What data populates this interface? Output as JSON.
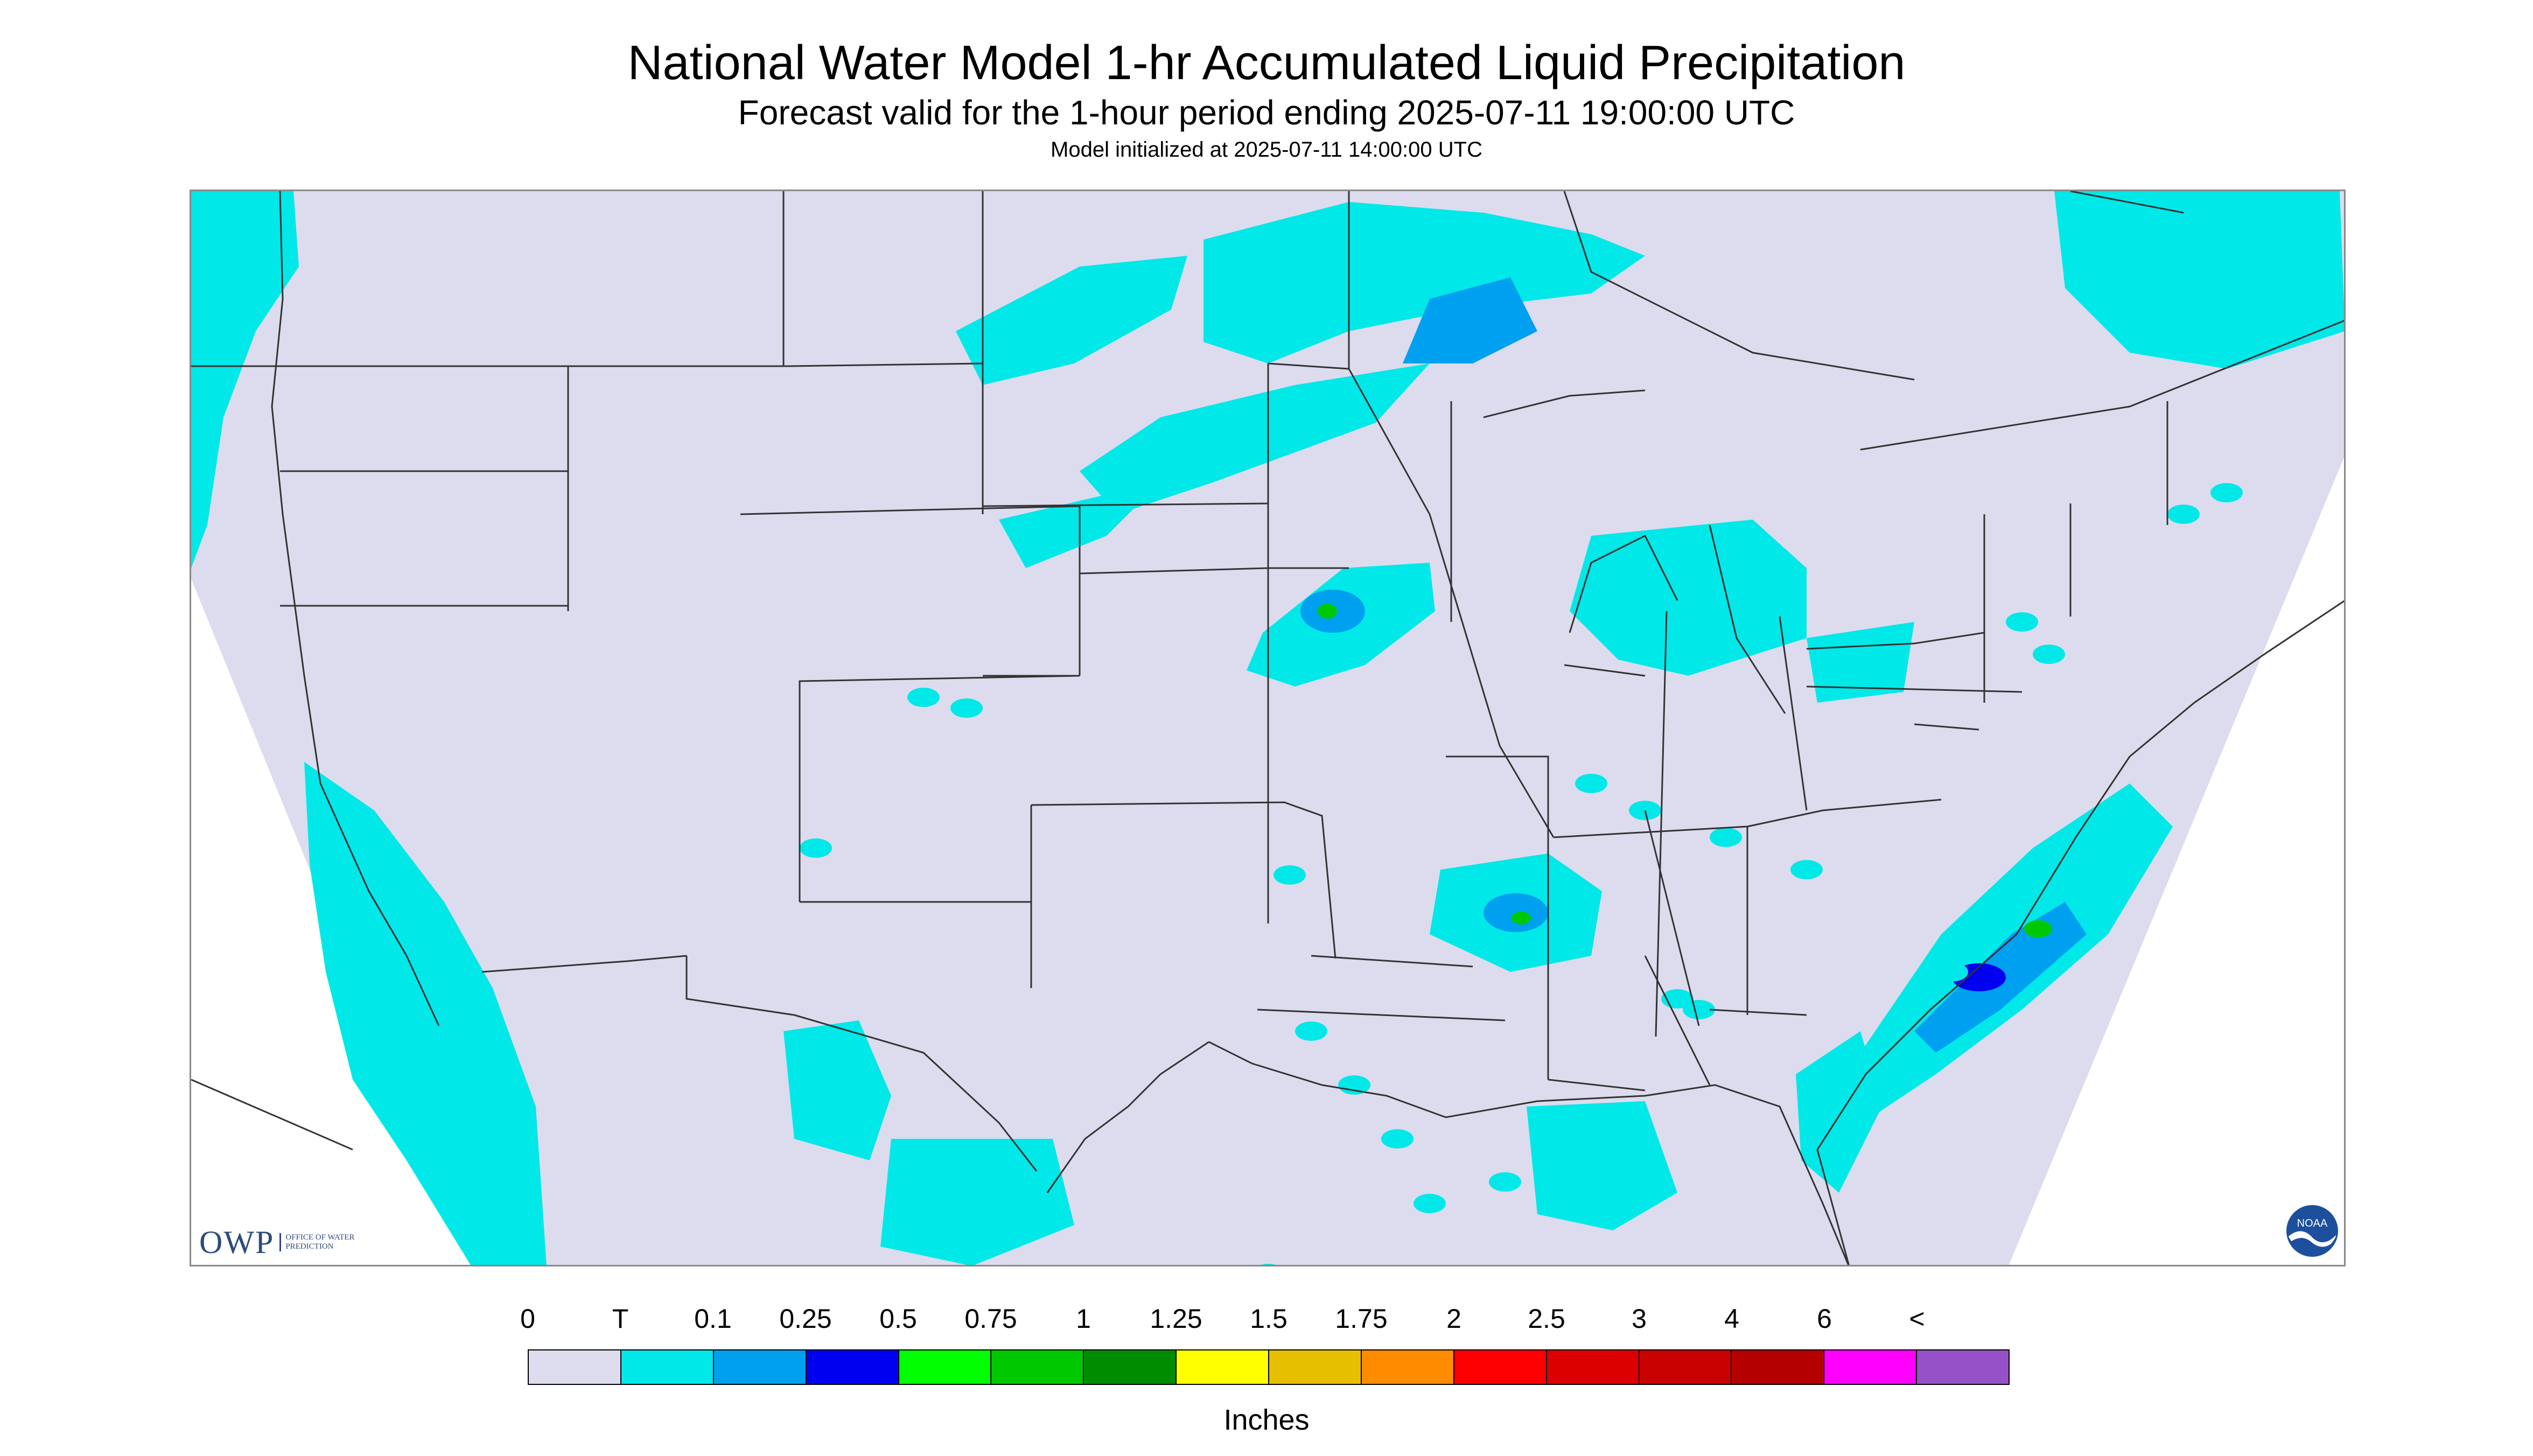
{
  "title": "National Water Model 1-hr Accumulated Liquid Precipitation",
  "subtitle": "Forecast valid for the 1-hour period ending 2025-07-11 19:00:00 UTC",
  "init_line": "Model initialized at 2025-07-11 14:00:00 UTC",
  "legend": {
    "labels": [
      "0",
      "T",
      "0.1",
      "0.25",
      "0.5",
      "0.75",
      "1",
      "1.25",
      "1.5",
      "1.75",
      "2",
      "2.5",
      "3",
      "4",
      "6",
      "<"
    ],
    "colors": [
      "#dcdcee",
      "#00e8e8",
      "#00a0f0",
      "#0000f0",
      "#00ff00",
      "#00c800",
      "#008c00",
      "#ffff00",
      "#e6c000",
      "#ff8c00",
      "#ff0000",
      "#dc0000",
      "#c80000",
      "#b40000",
      "#ff00ff",
      "#9650c8"
    ],
    "units": "Inches"
  },
  "map": {
    "background_color": "#dcdcee",
    "outside_domain_color": "#ffffff",
    "boundary_color": "#333333",
    "trace_color": "#00e8e8",
    "light_color": "#00a0f0",
    "moderate_color": "#0000f0",
    "heavy_color": "#00c800"
  },
  "logos": {
    "owp_letters": "OWP",
    "owp_text": "OFFICE OF WATER PREDICTION",
    "noaa_text": "NOAA"
  }
}
